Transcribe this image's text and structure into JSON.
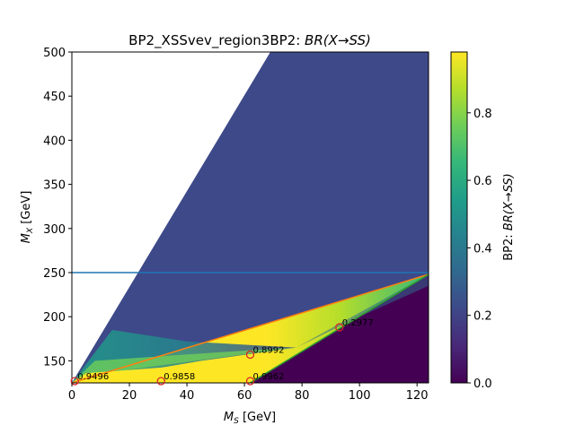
{
  "chart_data": {
    "type": "heatmap",
    "title": "BP2_XSSvev_region3BP2: BR(X→SS)",
    "title_plain": "BP2_XSSvev_region3BP2: ",
    "title_math": "BR(X→SS)",
    "xlabel_main": "M",
    "xlabel_sub": "S",
    "xlabel_unit": " [GeV]",
    "ylabel_main": "M",
    "ylabel_sub": "X",
    "ylabel_unit": " [GeV]",
    "colorbar_label_plain": "BP2: ",
    "colorbar_label_math": "BR(X→SS)",
    "xlim": [
      0,
      124
    ],
    "ylim": [
      125,
      500
    ],
    "x_ticks": [
      "0",
      "20",
      "40",
      "60",
      "80",
      "100",
      "120"
    ],
    "x_tick_values": [
      0,
      20,
      40,
      60,
      80,
      100,
      120
    ],
    "y_ticks": [
      "150",
      "200",
      "250",
      "300",
      "350",
      "400",
      "450",
      "500"
    ],
    "y_tick_values": [
      150,
      200,
      250,
      300,
      350,
      400,
      450,
      500
    ],
    "colorbar_ticks": [
      "0.0",
      "0.2",
      "0.4",
      "0.6",
      "0.8"
    ],
    "colorbar_tick_values": [
      0.0,
      0.2,
      0.4,
      0.6,
      0.8
    ],
    "colorbar_range": [
      0.0,
      0.98
    ],
    "colormap": [
      "#440154",
      "#482878",
      "#3e4989",
      "#31688e",
      "#26828e",
      "#1f9e89",
      "#35b779",
      "#6ece58",
      "#b5de2b",
      "#fde725"
    ],
    "horizontal_line": {
      "y": 250,
      "color": "#1f77b4"
    },
    "orange_line": {
      "points": [
        [
          0,
          125
        ],
        [
          124,
          248
        ]
      ],
      "color": "#ff7f0e"
    },
    "green_line": {
      "points": [
        [
          62,
          125
        ],
        [
          124,
          248
        ]
      ],
      "color": "#2ca02c"
    },
    "markers": [
      {
        "x": 1,
        "y": 127,
        "label": "0.9496"
      },
      {
        "x": 31,
        "y": 127,
        "label": "0.9858"
      },
      {
        "x": 62,
        "y": 157,
        "label": "0.8992"
      },
      {
        "x": 62,
        "y": 127,
        "label": "0.9962"
      },
      {
        "x": 93,
        "y": 188,
        "label": "0.2977"
      }
    ],
    "regions": [
      {
        "name": "upper-wedge",
        "polygon": [
          [
            0,
            125
          ],
          [
            69,
            500
          ],
          [
            124,
            500
          ],
          [
            124,
            248
          ],
          [
            0,
            125
          ]
        ],
        "value": 0.22
      },
      {
        "name": "middle-band",
        "polygon": [
          [
            0,
            125
          ],
          [
            124,
            248
          ],
          [
            62,
            125
          ]
        ],
        "value": 0.98
      },
      {
        "name": "lower-triangle",
        "polygon": [
          [
            62,
            125
          ],
          [
            124,
            248
          ],
          [
            124,
            125
          ]
        ],
        "value": 0.0
      }
    ]
  }
}
